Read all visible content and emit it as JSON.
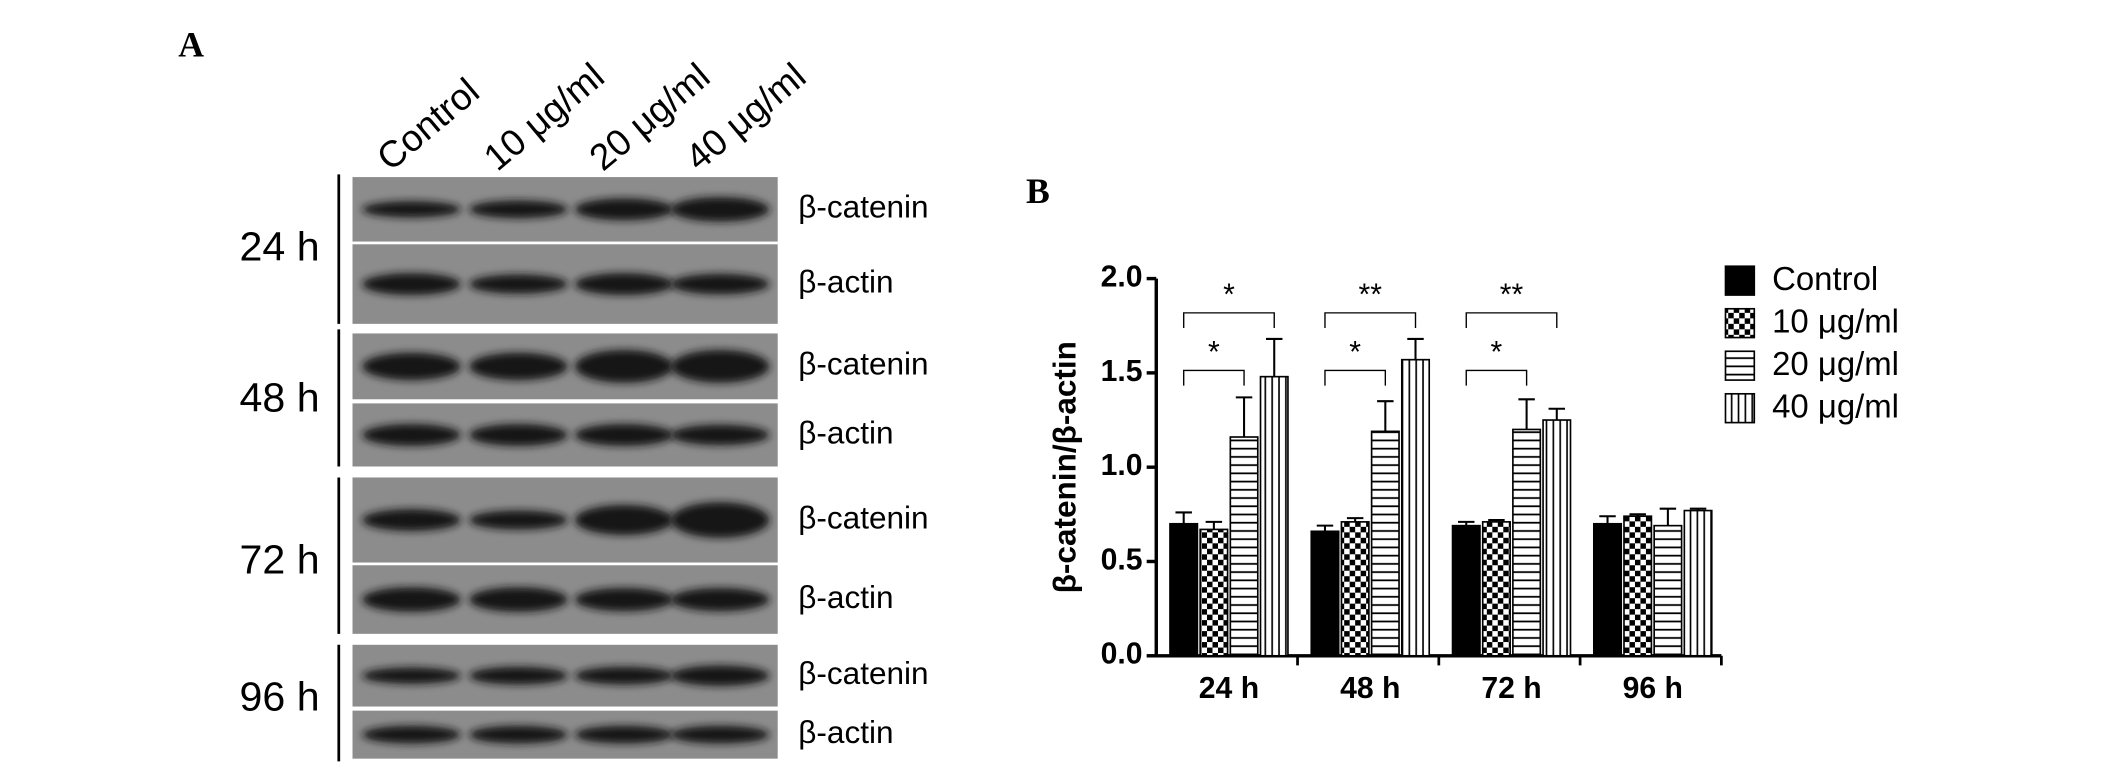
{
  "panel_a": {
    "label": "A",
    "lanes": [
      "Control",
      "10 μg/ml",
      "20 μg/ml",
      "40 μg/ml"
    ],
    "rows": [
      {
        "time": "24 h",
        "proteins": [
          "β-catenin",
          "β-actin"
        ]
      },
      {
        "time": "48 h",
        "proteins": [
          "β-catenin",
          "β-actin"
        ]
      },
      {
        "time": "72 h",
        "proteins": [
          "β-catenin",
          "β-actin"
        ]
      },
      {
        "time": "96 h",
        "proteins": [
          "β-catenin",
          "β-actin"
        ]
      }
    ]
  },
  "chart_data": {
    "type": "bar",
    "panel_label": "B",
    "y_label": "β-catenin/β-actin",
    "categories": [
      "24 h",
      "48 h",
      "72 h",
      "96 h"
    ],
    "series": [
      {
        "name": "Control",
        "color": "#000000",
        "pattern": "solid",
        "values": [
          0.7,
          0.66,
          0.69,
          0.7
        ],
        "errors": [
          0.06,
          0.03,
          0.02,
          0.04
        ]
      },
      {
        "name": "10 μg/ml",
        "color": "#000000",
        "pattern": "checker",
        "values": [
          0.67,
          0.71,
          0.71,
          0.74
        ],
        "errors": [
          0.04,
          0.02,
          0.01,
          0.01
        ]
      },
      {
        "name": "20 μg/ml",
        "color": "#000000",
        "pattern": "horizontal",
        "values": [
          1.16,
          1.19,
          1.2,
          0.69
        ],
        "errors": [
          0.21,
          0.16,
          0.16,
          0.09
        ]
      },
      {
        "name": "40 μg/ml",
        "color": "#000000",
        "pattern": "vertical",
        "values": [
          1.48,
          1.57,
          1.25,
          0.77
        ],
        "errors": [
          0.2,
          0.11,
          0.06,
          0.01
        ]
      }
    ],
    "ylim": [
      0,
      2
    ],
    "yticks": [
      {
        "value": 0,
        "label": "0.0"
      },
      0.5,
      {
        "value": 1,
        "label": "1.0"
      },
      1.5,
      {
        "value": 2,
        "label": "2.0"
      }
    ],
    "annotations": [
      "*",
      "*",
      "**",
      "*",
      "**",
      "*"
    ],
    "legend": "right"
  }
}
